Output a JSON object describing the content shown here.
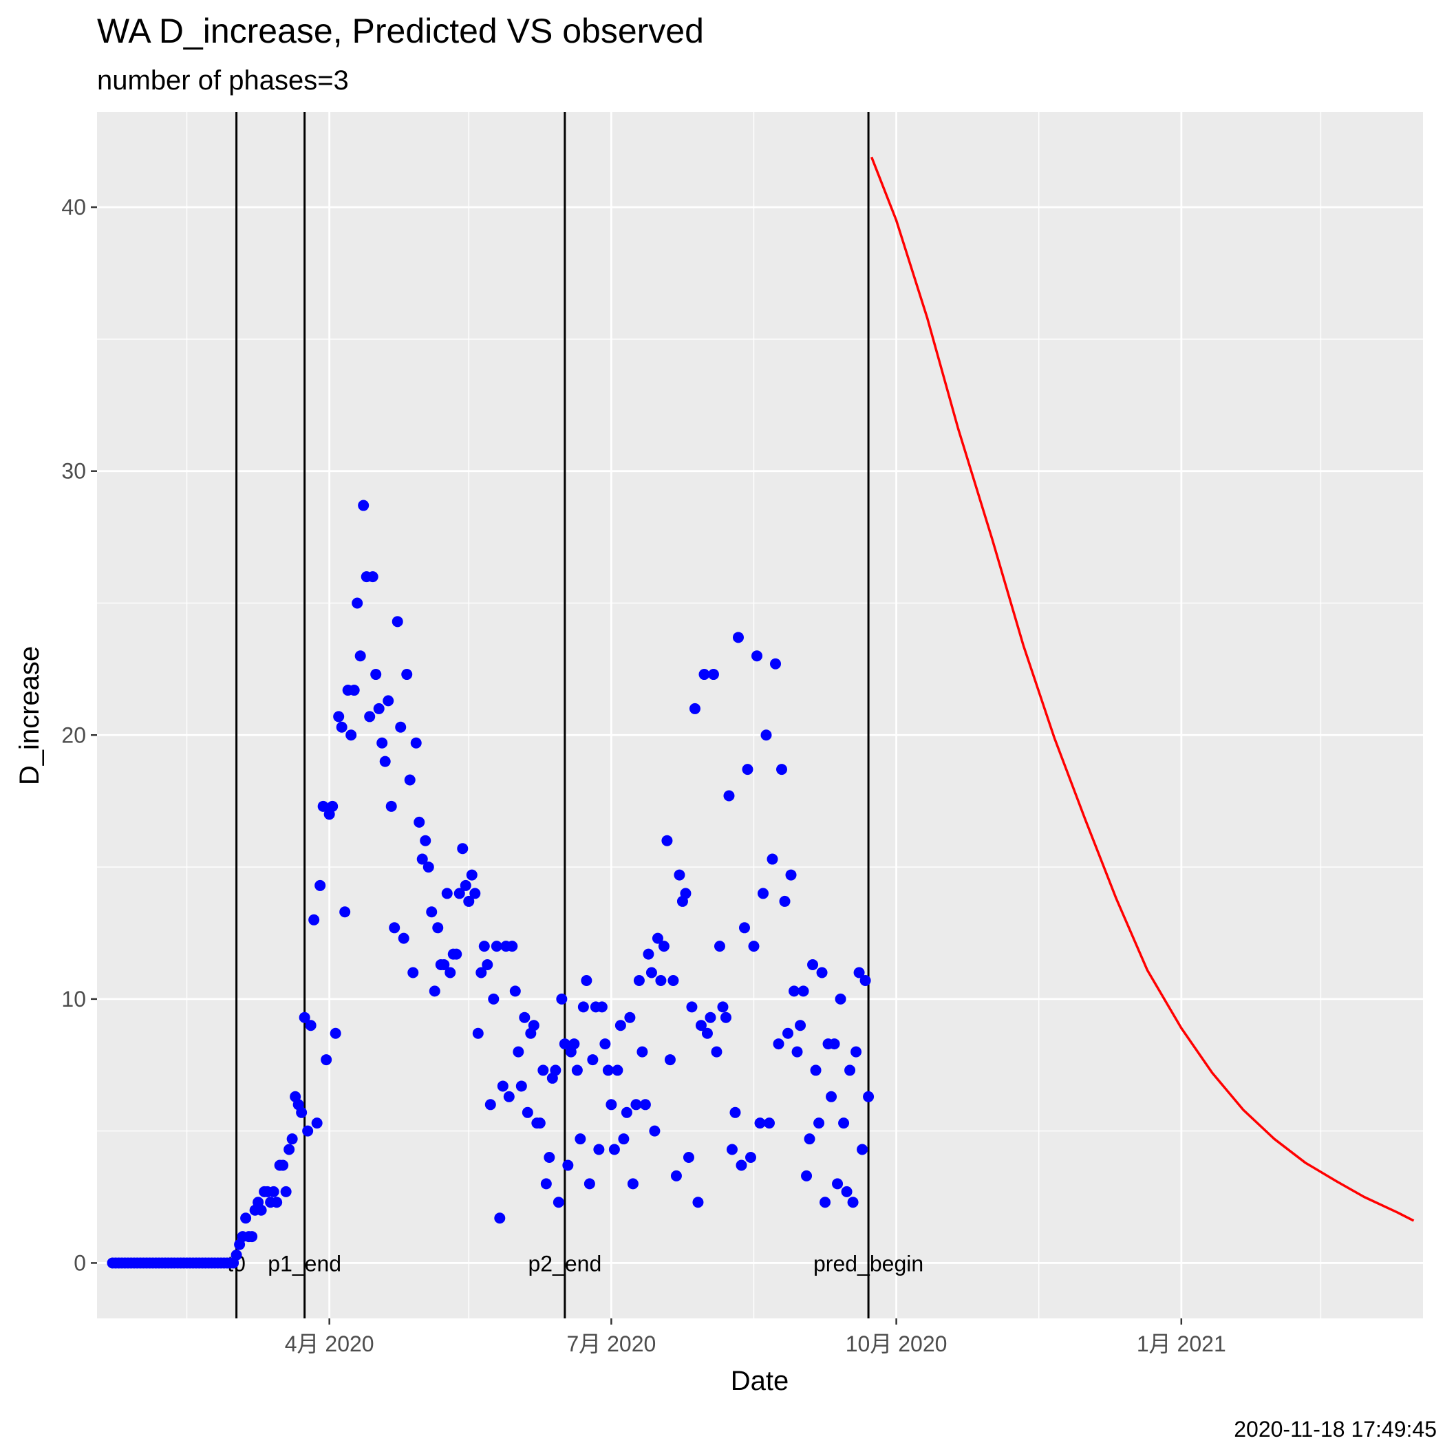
{
  "chart_data": {
    "type": "scatter",
    "title": "WA D_increase, Predicted VS observed",
    "subtitle": "number of phases=3",
    "xlabel": "Date",
    "ylabel": "D_increase",
    "caption": "2020-11-18 17:49:45",
    "xlim": [
      "2020-01-17",
      "2021-03-20"
    ],
    "ylim": [
      -2.1,
      43.6
    ],
    "grid": true,
    "x_ticks": [
      {
        "date": "2020-04-01",
        "label": "4月 2020"
      },
      {
        "date": "2020-07-01",
        "label": "7月 2020"
      },
      {
        "date": "2020-10-01",
        "label": "10月 2020"
      },
      {
        "date": "2021-01-01",
        "label": "1月 2021"
      }
    ],
    "x_minor_ticks": [
      "2020-02-15",
      "2020-05-16",
      "2020-08-16",
      "2020-11-16",
      "2021-02-15"
    ],
    "y_ticks": [
      0,
      10,
      20,
      30,
      40
    ],
    "y_minor_ticks": [
      5,
      15,
      25,
      35
    ],
    "vertical_lines": [
      {
        "date": "2020-03-02",
        "label": "t0"
      },
      {
        "date": "2020-03-24",
        "label": "p1_end"
      },
      {
        "date": "2020-06-16",
        "label": "p2_end"
      },
      {
        "date": "2020-09-22",
        "label": "pred_begin"
      }
    ],
    "series": [
      {
        "name": "observed",
        "type": "scatter",
        "color": "#0000ff",
        "start_date": "2020-01-22",
        "values": [
          0,
          0,
          0,
          0,
          0,
          0,
          0,
          0,
          0,
          0,
          0,
          0,
          0,
          0,
          0,
          0,
          0,
          0,
          0,
          0,
          0,
          0,
          0,
          0,
          0,
          0,
          0,
          0,
          0,
          0,
          0,
          0,
          0,
          0,
          0,
          0,
          0,
          0,
          0,
          0,
          0.3,
          0.7,
          1,
          1.7,
          1,
          1,
          2,
          2.3,
          2,
          2.7,
          2.7,
          2.3,
          2.7,
          2.3,
          3.7,
          3.7,
          2.7,
          4.3,
          4.7,
          6.3,
          6,
          5.7,
          9.3,
          5,
          9,
          13,
          5.3,
          14.3,
          17.3,
          7.7,
          17,
          17.3,
          8.7,
          20.7,
          20.3,
          13.3,
          21.7,
          20,
          21.7,
          25,
          23,
          28.7,
          26,
          20.7,
          26,
          22.3,
          21,
          19.7,
          19,
          21.3,
          17.3,
          12.7,
          24.3,
          20.3,
          12.3,
          22.3,
          18.3,
          11,
          19.7,
          16.7,
          15.3,
          16,
          15,
          13.3,
          10.3,
          12.7,
          11.3,
          11.3,
          14,
          11,
          11.7,
          11.7,
          14,
          15.7,
          14.3,
          13.7,
          14.7,
          14,
          8.7,
          11,
          12,
          11.3,
          6,
          10,
          12,
          1.7,
          6.7,
          12,
          6.3,
          12,
          10.3,
          8,
          6.7,
          9.3,
          5.7,
          8.7,
          9,
          5.3,
          5.3,
          7.3,
          3,
          4,
          7,
          7.3,
          2.3,
          10,
          8.3,
          3.7,
          8,
          8.3,
          7.3,
          4.7,
          9.7,
          10.7,
          3,
          7.7,
          9.7,
          4.3,
          9.7,
          8.3,
          7.3,
          6,
          4.3,
          7.3,
          9,
          4.7,
          5.7,
          9.3,
          3,
          6,
          10.7,
          8,
          6,
          11.7,
          11,
          5,
          12.3,
          10.7,
          12,
          16,
          7.7,
          10.7,
          3.3,
          14.7,
          13.7,
          14,
          4,
          9.7,
          21,
          2.3,
          9,
          22.3,
          8.7,
          9.3,
          22.3,
          8,
          12,
          9.7,
          9.3,
          17.7,
          4.3,
          5.7,
          23.7,
          3.7,
          12.7,
          18.7,
          4,
          12,
          23,
          5.3,
          14,
          20,
          5.3,
          15.3,
          22.7,
          8.3,
          18.7,
          13.7,
          8.7,
          14.7,
          10.3,
          8,
          9,
          10.3,
          3.3,
          4.7,
          11.3,
          7.3,
          5.3,
          11,
          2.3,
          8.3,
          6.3,
          8.3,
          3,
          10,
          5.3,
          2.7,
          7.3,
          2.3,
          8,
          11,
          4.3,
          10.7,
          6.3
        ]
      },
      {
        "name": "predicted",
        "type": "line",
        "color": "#ff0000",
        "points": [
          {
            "date": "2020-09-23",
            "value": 41.9
          },
          {
            "date": "2020-10-01",
            "value": 39.5
          },
          {
            "date": "2020-10-11",
            "value": 35.8
          },
          {
            "date": "2020-10-21",
            "value": 31.6
          },
          {
            "date": "2020-11-01",
            "value": 27.4
          },
          {
            "date": "2020-11-11",
            "value": 23.4
          },
          {
            "date": "2020-11-21",
            "value": 19.9
          },
          {
            "date": "2020-12-01",
            "value": 16.8
          },
          {
            "date": "2020-12-11",
            "value": 13.8
          },
          {
            "date": "2020-12-21",
            "value": 11.1
          },
          {
            "date": "2021-01-01",
            "value": 8.9
          },
          {
            "date": "2021-01-11",
            "value": 7.2
          },
          {
            "date": "2021-01-21",
            "value": 5.8
          },
          {
            "date": "2021-01-31",
            "value": 4.7
          },
          {
            "date": "2021-02-10",
            "value": 3.8
          },
          {
            "date": "2021-02-20",
            "value": 3.1
          },
          {
            "date": "2021-03-01",
            "value": 2.5
          },
          {
            "date": "2021-03-12",
            "value": 1.9
          },
          {
            "date": "2021-03-17",
            "value": 1.6
          }
        ]
      }
    ]
  }
}
